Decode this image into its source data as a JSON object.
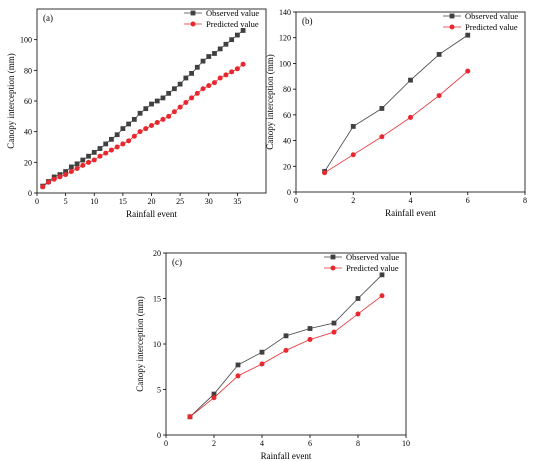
{
  "colors": {
    "observed": "#404040",
    "predicted": "#e8282e",
    "axis": "#000000"
  },
  "chart_data": [
    {
      "type": "line",
      "panel_label": "(a)",
      "xlabel": "Rainfall event",
      "ylabel": "Canopy interception (mm)",
      "xlim": [
        0,
        40
      ],
      "ylim": [
        0,
        120
      ],
      "xticks": [
        0,
        5,
        10,
        15,
        20,
        25,
        30,
        35
      ],
      "yticks": [
        0,
        20,
        40,
        60,
        80,
        100
      ],
      "legend_placement": "top-right",
      "x": [
        1,
        2,
        3,
        4,
        5,
        6,
        7,
        8,
        9,
        10,
        11,
        12,
        13,
        14,
        15,
        16,
        17,
        18,
        19,
        20,
        21,
        22,
        23,
        24,
        25,
        26,
        27,
        28,
        29,
        30,
        31,
        32,
        33,
        34,
        35,
        36
      ],
      "series": [
        {
          "name": "Observed value",
          "marker": "square",
          "values": [
            4.5,
            7.5,
            10.5,
            12,
            14,
            17,
            19,
            21.5,
            24,
            26.5,
            29,
            32,
            35,
            38,
            42,
            45,
            48,
            52,
            55,
            58,
            60,
            62,
            65,
            68,
            71,
            75,
            78,
            82,
            86,
            89,
            91,
            94,
            97,
            100,
            103,
            106
          ]
        },
        {
          "name": "Predicted value",
          "marker": "circle",
          "values": [
            4,
            7,
            9,
            10.5,
            12,
            14,
            16,
            18,
            20,
            21.5,
            24,
            26,
            28,
            30,
            32,
            34,
            37,
            40,
            42,
            44,
            46,
            48,
            50,
            53,
            56,
            59,
            62,
            65,
            68,
            70,
            72,
            75,
            77,
            79,
            81,
            84
          ]
        }
      ]
    },
    {
      "type": "line",
      "panel_label": "(b)",
      "xlabel": "Rainfall event",
      "ylabel": "Canopy interception (mm)",
      "xlim": [
        0,
        8
      ],
      "ylim": [
        0,
        140
      ],
      "xticks": [
        0,
        2,
        4,
        6,
        8
      ],
      "yticks": [
        0,
        20,
        40,
        60,
        80,
        100,
        120,
        140
      ],
      "legend_placement": "top-right",
      "x": [
        1,
        2,
        3,
        4,
        5,
        6
      ],
      "series": [
        {
          "name": "Observed value",
          "marker": "square",
          "values": [
            16,
            51,
            65,
            87,
            107,
            122
          ]
        },
        {
          "name": "Predicted value",
          "marker": "circle",
          "values": [
            15,
            29,
            43,
            58,
            75,
            94
          ]
        }
      ]
    },
    {
      "type": "line",
      "panel_label": "(c)",
      "xlabel": "Rainfall event",
      "ylabel": "Canopy interception (mm)",
      "xlim": [
        0,
        10
      ],
      "ylim": [
        0,
        20
      ],
      "xticks": [
        0,
        2,
        4,
        6,
        8,
        10
      ],
      "yticks": [
        0,
        5,
        10,
        15,
        20
      ],
      "legend_placement": "top-right",
      "x": [
        1,
        2,
        3,
        4,
        5,
        6,
        7,
        8,
        9
      ],
      "series": [
        {
          "name": "Observed value",
          "marker": "square",
          "values": [
            2,
            4.5,
            7.7,
            9.1,
            10.9,
            11.7,
            12.3,
            15,
            17.6
          ]
        },
        {
          "name": "Predicted value",
          "marker": "circle",
          "values": [
            2,
            4.1,
            6.5,
            7.8,
            9.3,
            10.5,
            11.3,
            13.3,
            15.3
          ]
        }
      ]
    }
  ]
}
